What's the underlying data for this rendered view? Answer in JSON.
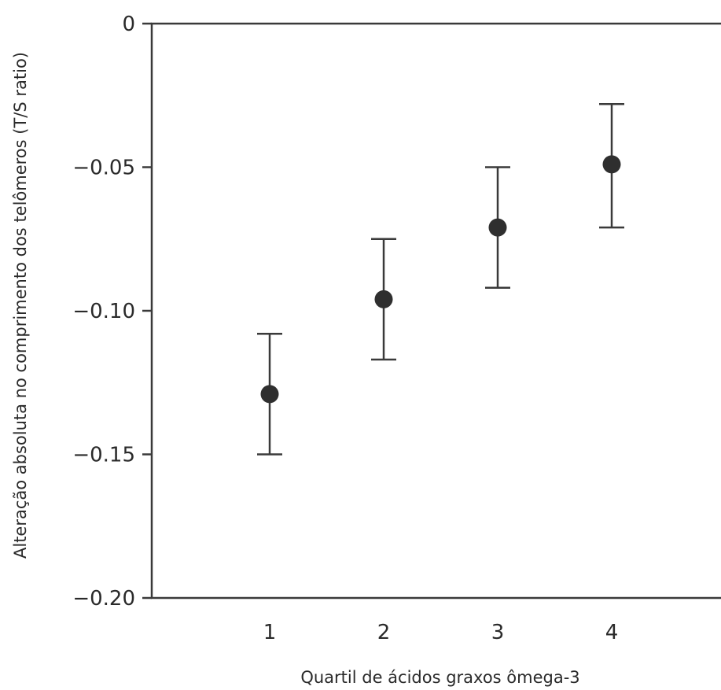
{
  "chart_data": {
    "type": "scatter",
    "title": "",
    "xlabel": "Quartil de ácidos graxos ômega-3",
    "ylabel": "Alteração absoluta no comprimento dos telômeros (T/S ratio)",
    "x_ticks": [
      "1",
      "2",
      "3",
      "4"
    ],
    "y_ticks": [
      "0",
      "−0.05",
      "−0.10",
      "−0.15",
      "−0.20"
    ],
    "y_tick_values": [
      0,
      -0.05,
      -0.1,
      -0.15,
      -0.2
    ],
    "xlim": [
      0,
      5
    ],
    "ylim": [
      -0.2,
      0
    ],
    "grid": false,
    "series": [
      {
        "x": [
          1,
          2,
          3,
          4
        ],
        "y": [
          -0.129,
          -0.096,
          -0.071,
          -0.049
        ],
        "error_low": [
          -0.15,
          -0.117,
          -0.092,
          -0.071
        ],
        "error_high": [
          -0.108,
          -0.075,
          -0.05,
          -0.028
        ]
      }
    ],
    "colors": {
      "axis": "#3a3a3a",
      "point": "#2f2f2f",
      "text": "#2a2a2a"
    }
  }
}
